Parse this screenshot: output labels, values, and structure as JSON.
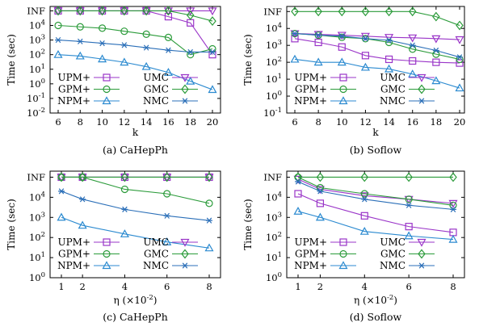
{
  "figure": {
    "colors": {
      "UPM+": "#9a35c8",
      "UMC": "#9a35c8",
      "GPM+": "#2b9b3a",
      "GMC": "#2b9b3a",
      "NPM+": "#2b8ad0",
      "NMC": "#2b6fb8"
    },
    "markers": {
      "UPM+": "square",
      "UMC": "triangle-down",
      "GPM+": "circle",
      "GMC": "diamond",
      "NPM+": "triangle-up",
      "NMC": "asterisk"
    }
  },
  "chart_data": [
    {
      "type": "line",
      "caption": "(a)  CaHepPh",
      "xlabel": "k",
      "ylabel": "Time (sec)",
      "x": [
        6,
        8,
        10,
        12,
        14,
        16,
        18,
        20
      ],
      "xticks": [
        "6",
        "8",
        "10",
        "12",
        "14",
        "16",
        "18",
        "20"
      ],
      "ytick_exponents": [
        -2,
        -1,
        0,
        1,
        2,
        3,
        4
      ],
      "ytop_label": "INF",
      "ylim_log10": [
        -2,
        5.3
      ],
      "legend": [
        "UPM+",
        "UMC",
        "GPM+",
        "GMC",
        "NPM+",
        "NMC"
      ],
      "series": [
        {
          "name": "UPM+",
          "values": [
            "INF",
            "INF",
            "INF",
            "INF",
            "INF",
            40000,
            15000,
            100
          ]
        },
        {
          "name": "UMC",
          "values": [
            "INF",
            "INF",
            "INF",
            "INF",
            "INF",
            "INF",
            "INF",
            "INF"
          ]
        },
        {
          "name": "GPM+",
          "values": [
            10000,
            8000,
            6500,
            4000,
            2500,
            1500,
            100,
            250
          ]
        },
        {
          "name": "GMC",
          "values": [
            "INF",
            "INF",
            "INF",
            "INF",
            "INF",
            "INF",
            50000,
            20000
          ]
        },
        {
          "name": "NPM+",
          "values": [
            100,
            80,
            50,
            30,
            15,
            6,
            1.5,
            0.4
          ]
        },
        {
          "name": "NMC",
          "values": [
            1000,
            800,
            600,
            450,
            300,
            200,
            150,
            150
          ]
        }
      ]
    },
    {
      "type": "line",
      "caption": "(b)  Soflow",
      "xlabel": "k",
      "ylabel": "Time (sec)",
      "x": [
        6,
        8,
        10,
        12,
        14,
        16,
        18,
        20
      ],
      "xticks": [
        "6",
        "8",
        "10",
        "12",
        "14",
        "16",
        "18",
        "20"
      ],
      "ytick_exponents": [
        -1,
        0,
        1,
        2,
        3,
        4
      ],
      "ytop_label": "INF",
      "ylim_log10": [
        -1,
        5.3
      ],
      "legend": [
        "UPM+",
        "UMC",
        "GPM+",
        "GMC",
        "NPM+",
        "NMC"
      ],
      "series": [
        {
          "name": "UPM+",
          "values": [
            2500,
            1500,
            800,
            250,
            150,
            120,
            100,
            90
          ]
        },
        {
          "name": "UMC",
          "values": [
            5000,
            4500,
            4000,
            3500,
            3000,
            2800,
            2500,
            2200
          ]
        },
        {
          "name": "GPM+",
          "values": [
            5000,
            4000,
            3000,
            2500,
            1500,
            600,
            300,
            150
          ]
        },
        {
          "name": "GMC",
          "values": [
            "INF",
            "INF",
            "INF",
            "INF",
            "INF",
            100000,
            50000,
            15000
          ]
        },
        {
          "name": "NPM+",
          "values": [
            150,
            100,
            100,
            50,
            40,
            20,
            8,
            3
          ]
        },
        {
          "name": "NMC",
          "values": [
            5000,
            4000,
            3500,
            2500,
            2000,
            1000,
            500,
            200
          ]
        }
      ]
    },
    {
      "type": "line",
      "caption": "(c)  CaHepPh",
      "xlabel": "η (×10",
      "xlabel_sup": "-2",
      "xlabel_end": ")",
      "ylabel": "Time (sec)",
      "x": [
        1,
        2,
        4,
        6,
        8
      ],
      "xticks": [
        "1",
        "2",
        "4",
        "6",
        "8"
      ],
      "ytick_exponents": [
        0,
        1,
        2,
        3,
        4
      ],
      "ytop_label": "INF",
      "ylim_log10": [
        0,
        5.3
      ],
      "legend": [
        "UPM+",
        "UMC",
        "GPM+",
        "GMC",
        "NPM+",
        "NMC"
      ],
      "series": [
        {
          "name": "UPM+",
          "values": [
            "INF",
            "INF",
            "INF",
            "INF",
            "INF"
          ]
        },
        {
          "name": "UMC",
          "values": [
            "INF",
            "INF",
            "INF",
            "INF",
            "INF"
          ]
        },
        {
          "name": "GPM+",
          "values": [
            "INF",
            "INF",
            25000,
            15000,
            5000
          ]
        },
        {
          "name": "GMC",
          "values": [
            "INF",
            "INF",
            "INF",
            "INF",
            "INF"
          ]
        },
        {
          "name": "NPM+",
          "values": [
            1000,
            400,
            150,
            60,
            30
          ]
        },
        {
          "name": "NMC",
          "values": [
            20000,
            8000,
            2500,
            1200,
            700
          ]
        }
      ]
    },
    {
      "type": "line",
      "caption": "(d)  Soflow",
      "xlabel": "η (×10",
      "xlabel_sup": "-2",
      "xlabel_end": ")",
      "ylabel": "Time (sec)",
      "x": [
        1,
        2,
        4,
        6,
        8
      ],
      "xticks": [
        "1",
        "2",
        "4",
        "6",
        "8"
      ],
      "ytick_exponents": [
        0,
        1,
        2,
        3,
        4
      ],
      "ytop_label": "INF",
      "ylim_log10": [
        0,
        5.3
      ],
      "legend": [
        "UPM+",
        "UMC",
        "GPM+",
        "GMC",
        "NPM+",
        "NMC"
      ],
      "series": [
        {
          "name": "UPM+",
          "values": [
            15000,
            5000,
            1200,
            350,
            180
          ]
        },
        {
          "name": "UMC",
          "values": [
            80000,
            25000,
            12000,
            8000,
            5000
          ]
        },
        {
          "name": "GPM+",
          "values": [
            100000,
            30000,
            15000,
            8000,
            4000
          ]
        },
        {
          "name": "GMC",
          "values": [
            "INF",
            "INF",
            "INF",
            "INF",
            "INF"
          ]
        },
        {
          "name": "NPM+",
          "values": [
            2000,
            1000,
            200,
            120,
            80
          ]
        },
        {
          "name": "NMC",
          "values": [
            60000,
            20000,
            8000,
            4000,
            2500
          ]
        }
      ]
    }
  ]
}
